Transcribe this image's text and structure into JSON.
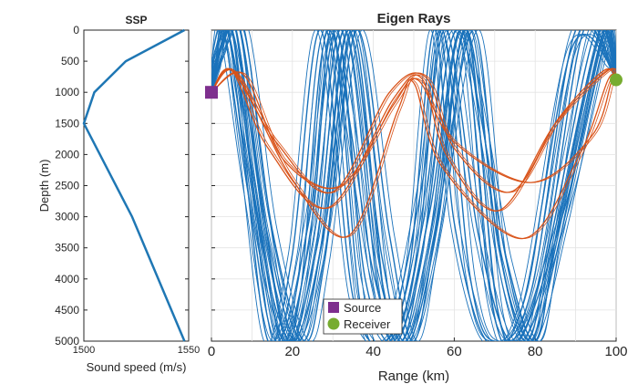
{
  "chart_data": [
    {
      "type": "line",
      "title": "SSP",
      "xlabel": "Sound speed (m/s)",
      "ylabel": "Depth (m)",
      "xlim": [
        1500,
        1550
      ],
      "ylim": [
        0,
        5000
      ],
      "y_reversed": true,
      "xticks": [
        "1500",
        "1550"
      ],
      "yticks": [
        "0",
        "500",
        "1000",
        "1500",
        "2000",
        "2500",
        "3000",
        "3500",
        "4000",
        "4500",
        "5000"
      ],
      "grid": false,
      "line_color": "#1f77b4",
      "series": [
        {
          "x": [
            1548,
            1520,
            1505,
            1500,
            1523,
            1548
          ],
          "y": [
            0,
            500,
            1000,
            1500,
            3000,
            5000
          ]
        }
      ]
    },
    {
      "type": "line",
      "title": "Eigen Rays",
      "xlabel": "Range (km)",
      "ylabel": "",
      "xlim": [
        0,
        100
      ],
      "ylim": [
        0,
        5000
      ],
      "y_reversed": true,
      "xticks": [
        "0",
        "20",
        "40",
        "60",
        "80",
        "100"
      ],
      "grid": true,
      "legend_position": "bottom-center",
      "colors": {
        "bottom_bounce": "#1a72bb",
        "direct": "#d95319",
        "source": "#7e2f8e",
        "receiver": "#77ac30"
      },
      "source": {
        "name": "Source",
        "range_km": 0,
        "depth_m": 1000
      },
      "receiver": {
        "name": "Receiver",
        "range_km": 100,
        "depth_m": 800
      },
      "direct_rays": [
        {
          "x": [
            0,
            5,
            16,
            30,
            44,
            53,
            60,
            74,
            86,
            97,
            100
          ],
          "y": [
            1000,
            650,
            1800,
            2600,
            1000,
            760,
            1900,
            2600,
            1400,
            650,
            800
          ]
        },
        {
          "x": [
            0,
            5,
            14,
            29,
            45,
            52,
            58,
            71,
            85,
            98,
            100
          ],
          "y": [
            1000,
            650,
            1900,
            2850,
            1100,
            780,
            2000,
            2900,
            1500,
            650,
            800
          ]
        },
        {
          "x": [
            0,
            6,
            20,
            34,
            46,
            50,
            57,
            77,
            91,
            98,
            100
          ],
          "y": [
            1000,
            700,
            2400,
            3300,
            1300,
            850,
            2200,
            3350,
            2000,
            800,
            800
          ]
        },
        {
          "x": [
            0,
            8,
            18,
            32,
            45,
            51,
            60,
            79,
            94,
            99,
            100
          ],
          "y": [
            1000,
            720,
            2100,
            2500,
            1200,
            800,
            1800,
            2450,
            1700,
            800,
            800
          ]
        }
      ],
      "bottom_bounce_rays": [
        {
          "x": [
            0,
            1,
            4,
            10,
            17,
            22,
            29,
            40,
            47,
            53,
            61,
            73,
            80,
            85,
            97,
            100
          ],
          "y": [
            1000,
            500,
            0,
            2200,
            5000,
            4200,
            0,
            3900,
            5000,
            3200,
            0,
            3700,
            5000,
            3500,
            0,
            800
          ]
        },
        {
          "x": [
            0,
            2,
            6,
            13,
            21,
            27,
            34,
            42,
            48,
            55,
            63,
            71,
            78,
            84,
            95,
            100
          ],
          "y": [
            1000,
            400,
            0,
            3000,
            5000,
            3500,
            0,
            3600,
            5000,
            3300,
            0,
            3500,
            5000,
            3300,
            0,
            800
          ]
        },
        {
          "x": [
            0,
            2,
            8,
            15,
            23,
            28,
            36,
            44,
            50,
            56,
            65,
            72,
            80,
            86,
            96,
            100
          ],
          "y": [
            1000,
            300,
            0,
            3200,
            5000,
            3700,
            0,
            3300,
            5000,
            3000,
            0,
            3800,
            5000,
            3000,
            0,
            800
          ]
        },
        {
          "x": [
            0,
            1,
            3,
            9,
            16,
            24,
            31,
            38,
            46,
            54,
            62,
            69,
            76,
            88,
            98,
            100
          ],
          "y": [
            1000,
            600,
            0,
            2600,
            5000,
            3100,
            0,
            4000,
            5000,
            2900,
            0,
            4300,
            5000,
            2700,
            0,
            800
          ]
        },
        {
          "x": [
            0,
            3,
            7,
            12,
            19,
            26,
            33,
            41,
            45,
            52,
            58,
            66,
            74,
            82,
            92,
            100
          ],
          "y": [
            1000,
            200,
            0,
            2500,
            5000,
            3400,
            0,
            4100,
            4600,
            2500,
            0,
            3300,
            5000,
            3800,
            0,
            800
          ]
        },
        {
          "x": [
            0,
            2,
            5,
            11,
            18,
            25,
            30,
            37,
            44,
            51,
            57,
            64,
            70,
            79,
            90,
            100
          ],
          "y": [
            1000,
            350,
            0,
            2800,
            5000,
            3000,
            0,
            4500,
            5000,
            3600,
            0,
            4000,
            5000,
            4200,
            0,
            800
          ]
        },
        {
          "x": [
            0,
            1,
            4,
            8,
            14,
            20,
            27,
            35,
            43,
            49,
            55,
            60,
            68,
            77,
            89,
            99,
            100
          ],
          "y": [
            1000,
            500,
            0,
            2000,
            5000,
            3600,
            0,
            4300,
            5000,
            3800,
            0,
            3100,
            5000,
            4400,
            300,
            600,
            800
          ]
        },
        {
          "x": [
            0,
            2,
            6,
            12,
            20,
            28,
            35,
            43,
            49,
            56,
            63,
            71,
            79,
            87,
            97,
            100
          ],
          "y": [
            1000,
            300,
            0,
            3300,
            5000,
            3200,
            0,
            4400,
            5000,
            3100,
            0,
            4600,
            5000,
            3100,
            100,
            800
          ]
        }
      ]
    }
  ],
  "legend": {
    "source_label": "Source",
    "receiver_label": "Receiver"
  }
}
